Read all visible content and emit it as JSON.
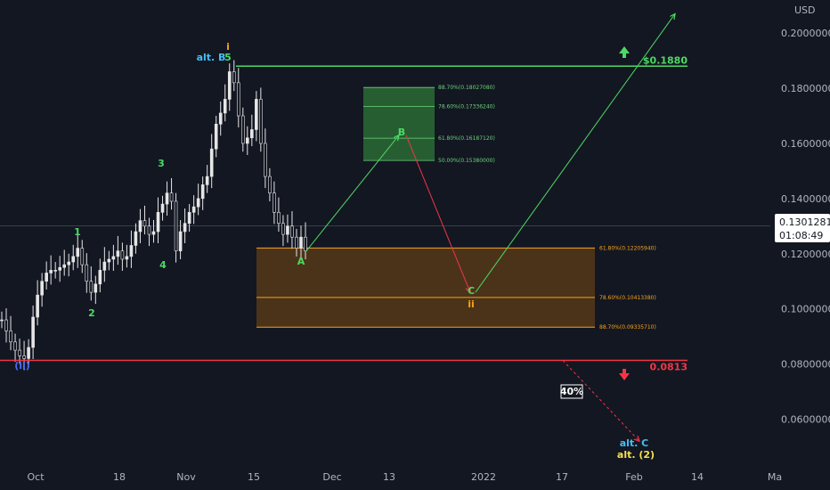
{
  "colors": {
    "bg": "#131722",
    "axis_text": "#b2b5be",
    "candle": "#e6e6e6",
    "green": "#4cd964",
    "red": "#f23645",
    "orange": "#f7a21b",
    "orange_zone": "#7a4a14",
    "green_zone": "#2a6b35",
    "cyan": "#42bff5",
    "blue": "#4a6cf7",
    "yellow": "#f5e050",
    "white": "#ffffff"
  },
  "chart_data": {
    "type": "candlestick",
    "currency": "USD",
    "x_ticks": [
      "Oct",
      "18",
      "Nov",
      "15",
      "Dec",
      "13",
      "2022",
      "17",
      "Feb",
      "14",
      "Ma"
    ],
    "y_ticks": [
      "0.20000000",
      "0.18000000",
      "0.16000000",
      "0.14000000",
      "0.12000000",
      "0.10000000",
      "0.08000000",
      "0.06000000"
    ],
    "ylim": [
      0.044,
      0.212
    ],
    "current_price": "0.13012816",
    "countdown": "01:08:49",
    "close_series": [
      0.096,
      0.092,
      0.088,
      0.085,
      0.083,
      0.082,
      0.086,
      0.097,
      0.105,
      0.11,
      0.113,
      0.114,
      0.114,
      0.115,
      0.116,
      0.117,
      0.119,
      0.122,
      0.116,
      0.11,
      0.106,
      0.109,
      0.114,
      0.117,
      0.118,
      0.119,
      0.121,
      0.118,
      0.119,
      0.123,
      0.128,
      0.132,
      0.13,
      0.127,
      0.128,
      0.135,
      0.138,
      0.142,
      0.139,
      0.121,
      0.128,
      0.131,
      0.135,
      0.137,
      0.14,
      0.145,
      0.148,
      0.158,
      0.167,
      0.171,
      0.176,
      0.186,
      0.182,
      0.17,
      0.16,
      0.162,
      0.165,
      0.176,
      0.16,
      0.148,
      0.142,
      0.135,
      0.131,
      0.127,
      0.13,
      0.126,
      0.122,
      0.126,
      0.121
    ],
    "levels": {
      "top": {
        "value": 0.188,
        "label": "$0.1880"
      },
      "bottom": {
        "value": 0.0813,
        "label": "0.0813"
      }
    },
    "fib_green": [
      {
        "value": 0.1802708,
        "label": "88.70%(0.18027080)"
      },
      {
        "value": 0.1733624,
        "label": "78.60%(0.17336240)"
      },
      {
        "value": 0.1618712,
        "label": "61.80%(0.16187120)"
      },
      {
        "value": 0.1538,
        "label": "50.00%(0.15380000)"
      }
    ],
    "fib_orange": [
      {
        "value": 0.1220594,
        "label": "61.80%(0.12205940)"
      },
      {
        "value": 0.1041338,
        "label": "78.60%(0.10413380)"
      },
      {
        "value": 0.0933571,
        "label": "88.70%(0.09335710)"
      }
    ],
    "wave_labels": [
      {
        "text": "i",
        "color": "orange"
      },
      {
        "text": "5",
        "color": "green"
      },
      {
        "text": "alt. B",
        "color": "cyan"
      },
      {
        "text": "3",
        "color": "green"
      },
      {
        "text": "1",
        "color": "green"
      },
      {
        "text": "2",
        "color": "green"
      },
      {
        "text": "4",
        "color": "green"
      },
      {
        "text": "(ii)",
        "color": "blue"
      },
      {
        "text": "A",
        "color": "green"
      },
      {
        "text": "B",
        "color": "green"
      },
      {
        "text": "C",
        "color": "green"
      },
      {
        "text": "ii",
        "color": "orange"
      },
      {
        "text": "alt. C",
        "color": "cyan"
      },
      {
        "text": "alt. (2)",
        "color": "yellow"
      }
    ],
    "probability": "40%",
    "path_points": {
      "A": [
        0.121
      ],
      "B": [
        0.163
      ],
      "C": [
        0.106
      ],
      "target": [
        0.207
      ],
      "alt_end": [
        0.052
      ]
    }
  }
}
